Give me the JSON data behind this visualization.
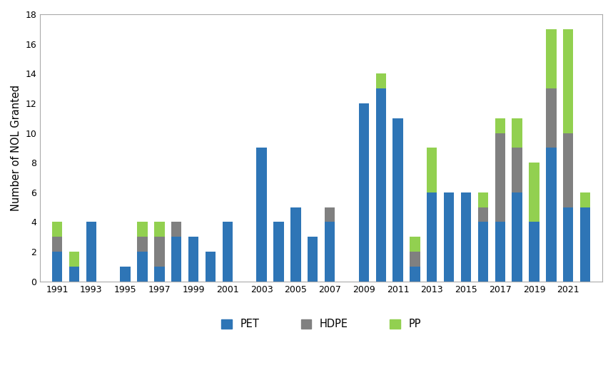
{
  "years": [
    1991,
    1992,
    1993,
    1994,
    1995,
    1996,
    1997,
    1998,
    1999,
    2000,
    2001,
    2002,
    2003,
    2004,
    2005,
    2006,
    2007,
    2008,
    2009,
    2010,
    2011,
    2012,
    2013,
    2014,
    2015,
    2016,
    2017,
    2018,
    2019,
    2020,
    2021,
    2022
  ],
  "PET": [
    2,
    1,
    4,
    0,
    1,
    2,
    1,
    3,
    3,
    2,
    4,
    0,
    9,
    4,
    5,
    3,
    4,
    0,
    12,
    13,
    11,
    1,
    6,
    6,
    6,
    4,
    4,
    6,
    4,
    9,
    5,
    5
  ],
  "HDPE": [
    1,
    0,
    0,
    0,
    0,
    1,
    2,
    1,
    0,
    0,
    0,
    0,
    0,
    0,
    0,
    0,
    1,
    0,
    0,
    0,
    0,
    1,
    0,
    0,
    0,
    1,
    6,
    3,
    0,
    4,
    5,
    0
  ],
  "PP": [
    1,
    1,
    0,
    0,
    0,
    1,
    1,
    0,
    0,
    0,
    0,
    0,
    0,
    0,
    0,
    0,
    0,
    0,
    0,
    1,
    0,
    1,
    3,
    0,
    0,
    1,
    1,
    2,
    4,
    4,
    7,
    1
  ],
  "color_PET": "#2E75B6",
  "color_HDPE": "#808080",
  "color_PP": "#92D050",
  "ylabel": "Number of NOL Granted",
  "ylim": [
    0,
    18
  ],
  "yticks": [
    0,
    2,
    4,
    6,
    8,
    10,
    12,
    14,
    16,
    18
  ],
  "xtick_years": [
    1991,
    1993,
    1995,
    1997,
    1999,
    2001,
    2003,
    2005,
    2007,
    2009,
    2011,
    2013,
    2015,
    2017,
    2019,
    2021
  ],
  "legend_labels": [
    "PET",
    "HDPE",
    "PP"
  ],
  "bar_width": 0.6
}
